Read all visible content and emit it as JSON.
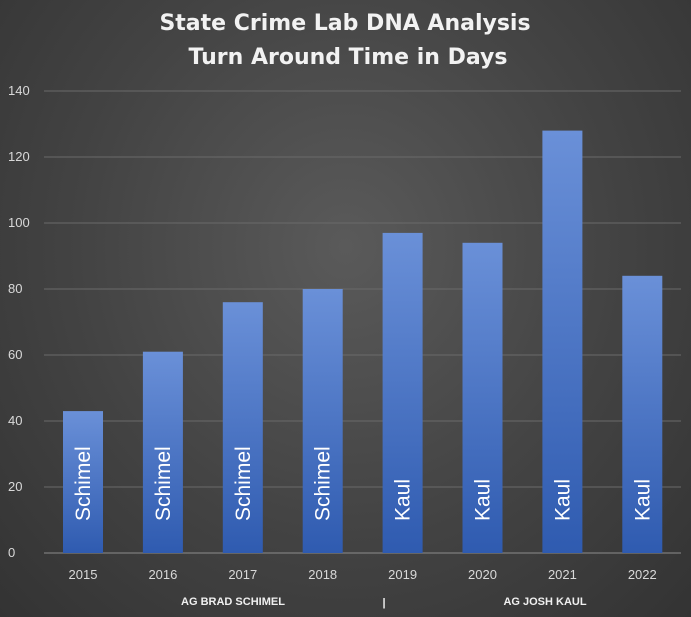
{
  "chart_data": {
    "type": "bar",
    "title": "State Crime Lab DNA Analysis",
    "subtitle": "Turn Around Time in Days",
    "categories": [
      "2015",
      "2016",
      "2017",
      "2018",
      "2019",
      "2020",
      "2021",
      "2022"
    ],
    "values": [
      43,
      61,
      76,
      80,
      97,
      94,
      128,
      84
    ],
    "bar_labels": [
      "Schimel",
      "Schimel",
      "Schimel",
      "Schimel",
      "Kaul",
      "Kaul",
      "Kaul",
      "Kaul"
    ],
    "ylim": [
      0,
      140
    ],
    "yticks": [
      0,
      20,
      40,
      60,
      80,
      100,
      120,
      140
    ],
    "grid": true,
    "bar_color": "#4472c4",
    "groups": [
      {
        "label": "AG BRAD SCHIMEL",
        "from": 0,
        "to": 3
      },
      {
        "label": "AG JOSH KAUL",
        "from": 4,
        "to": 7
      }
    ],
    "group_divider": "|"
  }
}
